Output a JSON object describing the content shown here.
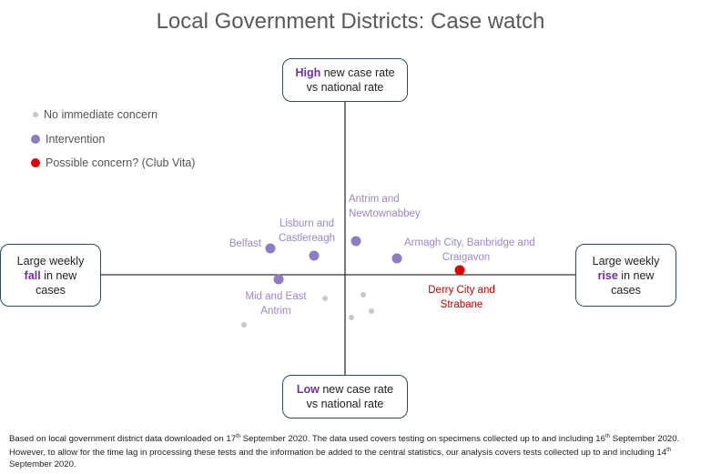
{
  "chart_data": {
    "type": "scatter",
    "title": "Local Government Districts: Case watch",
    "xlim": [
      -26.9,
      25.3
    ],
    "ylim": [
      -11,
      19
    ],
    "grid": false,
    "legend_placement": "top-left",
    "axis_labels": {
      "top": {
        "em": "High",
        "rest1": " new case rate",
        "rest2": "vs national rate"
      },
      "bottom": {
        "em": "Low",
        "rest1": " new case rate",
        "rest2": "vs national rate"
      },
      "left": {
        "line1": "Large weekly",
        "em": "fall",
        "rest": " in new",
        "line3": "cases"
      },
      "right": {
        "line1": "Large weekly",
        "em": "rise",
        "rest": " in new",
        "line3": "cases"
      }
    },
    "legend": [
      {
        "label": "No immediate concern",
        "category": "none",
        "color": "#c8c8c8"
      },
      {
        "label": "Intervention",
        "category": "intervention",
        "color": "#8e7cc3"
      },
      {
        "label": "Possible concern? (Club Vita)",
        "category": "concern",
        "color": "#e00000"
      }
    ],
    "points": [
      {
        "label": [
          "Belfast"
        ],
        "x": -8.2,
        "y": 2.9,
        "category": "intervention",
        "label_pos": "left"
      },
      {
        "label": [
          "Lisburn and",
          "Castlereagh"
        ],
        "x": -3.4,
        "y": 2.1,
        "category": "intervention",
        "label_pos": "above"
      },
      {
        "label": [
          "Antrim and",
          "Newtownabbey"
        ],
        "x": 1.2,
        "y": 3.7,
        "category": "intervention",
        "label_pos": "above"
      },
      {
        "label": [
          "Armagh City, Banbridge and",
          "Craigavon"
        ],
        "x": 5.7,
        "y": 1.8,
        "category": "intervention",
        "label_pos": "right-above"
      },
      {
        "label": [
          "Derry City and",
          "Strabane"
        ],
        "x": 12.6,
        "y": 0.5,
        "category": "concern",
        "label_pos": "below"
      },
      {
        "label": [
          "Mid and East",
          "Antrim"
        ],
        "x": -7.3,
        "y": -0.5,
        "category": "intervention",
        "label_pos": "below"
      },
      {
        "label": [],
        "x": -2.2,
        "y": -2.6,
        "category": "none"
      },
      {
        "label": [],
        "x": 2.0,
        "y": -2.2,
        "category": "none"
      },
      {
        "label": [],
        "x": 2.9,
        "y": -4.0,
        "category": "none"
      },
      {
        "label": [],
        "x": 0.7,
        "y": -4.7,
        "category": "none"
      },
      {
        "label": [],
        "x": -11.1,
        "y": -5.5,
        "category": "none"
      }
    ]
  },
  "footnote": {
    "p1": "Based on local government district data downloaded on 17",
    "s1": "th",
    "p2": " September 2020. The data used covers testing on specimens collected up to and including 16",
    "s2": "th",
    "p3": " September 2020. However, to allow for the time lag in processing these tests and the information be added to the central statistics, our analysis covers tests collected up to and including 14",
    "s3": "th",
    "p4": " September 2020."
  }
}
